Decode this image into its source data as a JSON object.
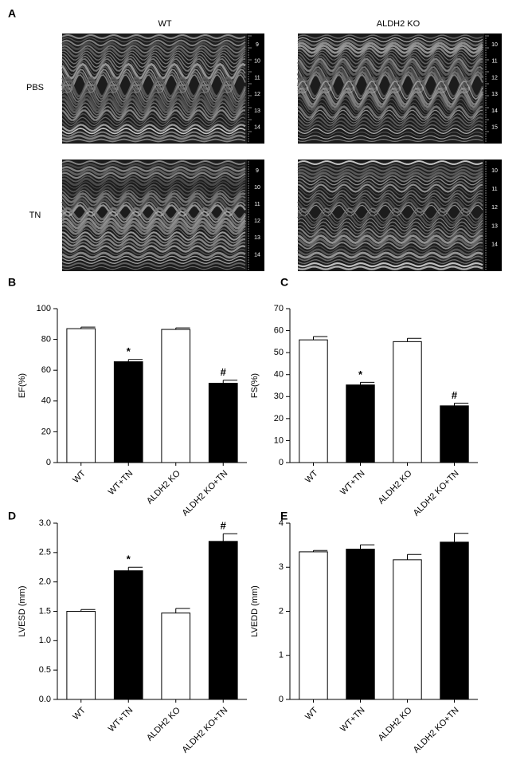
{
  "panel_a": {
    "label": "A",
    "columns": [
      "WT",
      "ALDH2 KO"
    ],
    "rows": [
      "PBS",
      "TN"
    ],
    "images": [
      {
        "ruler": [
          "9",
          "10",
          "11",
          "12",
          "13",
          "14"
        ]
      },
      {
        "ruler": [
          "10",
          "11",
          "12",
          "13",
          "14",
          "15"
        ]
      },
      {
        "ruler": [
          "9",
          "10",
          "11",
          "12",
          "13",
          "14"
        ]
      },
      {
        "ruler": [
          "10",
          "11",
          "12",
          "13",
          "14"
        ]
      }
    ]
  },
  "chart_data": [
    {
      "type": "bar",
      "panel": "B",
      "ylabel": "EF(%)",
      "categories": [
        "WT",
        "WT+TN",
        "ALDH2 KO",
        "ALDH2 KO+TN"
      ],
      "values": [
        87,
        65.5,
        86.5,
        51.5
      ],
      "errors": [
        1,
        1.5,
        1,
        2
      ],
      "colors": [
        "#ffffff",
        "#000000",
        "#ffffff",
        "#000000"
      ],
      "annotations": [
        null,
        "*",
        null,
        "#"
      ],
      "ylim": [
        0,
        100
      ],
      "yticks": [
        0,
        20,
        40,
        60,
        80,
        100
      ]
    },
    {
      "type": "bar",
      "panel": "C",
      "ylabel": "FS(%)",
      "categories": [
        "WT",
        "WT+TN",
        "ALDH2 KO",
        "ALDH2 KO+TN"
      ],
      "values": [
        55.8,
        35.3,
        55,
        25.8
      ],
      "errors": [
        1.5,
        1.2,
        1.5,
        1.2
      ],
      "colors": [
        "#ffffff",
        "#000000",
        "#ffffff",
        "#000000"
      ],
      "annotations": [
        null,
        "*",
        null,
        "#"
      ],
      "ylim": [
        0,
        70
      ],
      "yticks": [
        0,
        10,
        20,
        30,
        40,
        50,
        60,
        70
      ]
    },
    {
      "type": "bar",
      "panel": "D",
      "ylabel": "LVESD (mm)",
      "categories": [
        "WT",
        "WT+TN",
        "ALDH2 KO",
        "ALDH2 KO+TN"
      ],
      "values": [
        1.5,
        2.19,
        1.47,
        2.69
      ],
      "errors": [
        0.03,
        0.06,
        0.08,
        0.13
      ],
      "colors": [
        "#ffffff",
        "#000000",
        "#ffffff",
        "#000000"
      ],
      "annotations": [
        null,
        "*",
        null,
        "#"
      ],
      "ylim": [
        0,
        3
      ],
      "yticks": [
        {
          "value": 0,
          "label": "0.0"
        },
        0.5,
        {
          "value": 1,
          "label": "1.0"
        },
        1.5,
        {
          "value": 2,
          "label": "2.0"
        },
        2.5,
        {
          "value": 3,
          "label": "3.0"
        }
      ]
    },
    {
      "type": "bar",
      "panel": "E",
      "ylabel": "LVEDD (mm)",
      "categories": [
        "WT",
        "WT+TN",
        "ALDH2 KO",
        "ALDH2 KO+TN"
      ],
      "values": [
        3.35,
        3.41,
        3.17,
        3.57
      ],
      "errors": [
        0.03,
        0.1,
        0.12,
        0.2
      ],
      "colors": [
        "#ffffff",
        "#000000",
        "#ffffff",
        "#000000"
      ],
      "ylim": [
        0,
        4
      ],
      "yticks": [
        0,
        1,
        2,
        3,
        4
      ]
    }
  ]
}
